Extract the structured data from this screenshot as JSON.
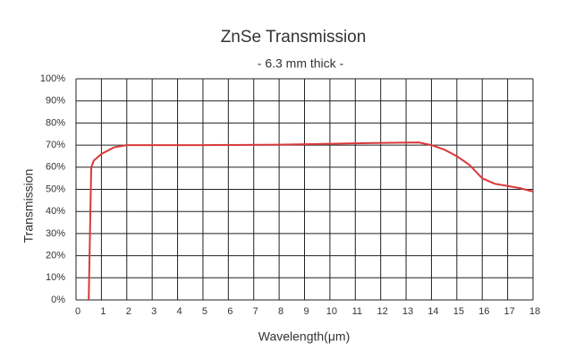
{
  "chart_data": {
    "type": "line",
    "title": "ZnSe Transmission",
    "subtitle": "- 6.3 mm thick -",
    "x_label": "Wavelength(μm)",
    "y_label": "Transmission",
    "x": [
      0.5,
      0.55,
      0.6,
      0.7,
      1,
      1.5,
      2,
      5,
      8,
      10,
      12,
      13.5,
      14,
      14.5,
      15,
      15.5,
      16,
      16.5,
      17,
      17.5,
      18
    ],
    "series": [
      {
        "name": "ZnSe",
        "color": "#d9383a",
        "values": [
          0,
          30,
          60,
          63,
          66,
          69,
          70,
          70,
          70.2,
          70.6,
          71,
          71.2,
          70,
          68,
          65,
          61,
          55,
          52.5,
          51.5,
          50.5,
          49
        ]
      }
    ],
    "xlim": [
      0,
      18
    ],
    "xticks": [
      0,
      1,
      2,
      3,
      4,
      5,
      6,
      7,
      8,
      9,
      10,
      11,
      12,
      13,
      14,
      15,
      16,
      17,
      18
    ],
    "ylim": [
      0,
      100
    ],
    "yticks": [
      {
        "value": 0,
        "label": "0%"
      },
      {
        "value": 10,
        "label": "10%"
      },
      {
        "value": 20,
        "label": "20%"
      },
      {
        "value": 30,
        "label": "30%"
      },
      {
        "value": 40,
        "label": "40%"
      },
      {
        "value": 50,
        "label": "50%"
      },
      {
        "value": 60,
        "label": "60%"
      },
      {
        "value": 70,
        "label": "70%"
      },
      {
        "value": 80,
        "label": "80%"
      },
      {
        "value": 90,
        "label": "90%"
      },
      {
        "value": 100,
        "label": "100%"
      }
    ],
    "grid": true
  }
}
